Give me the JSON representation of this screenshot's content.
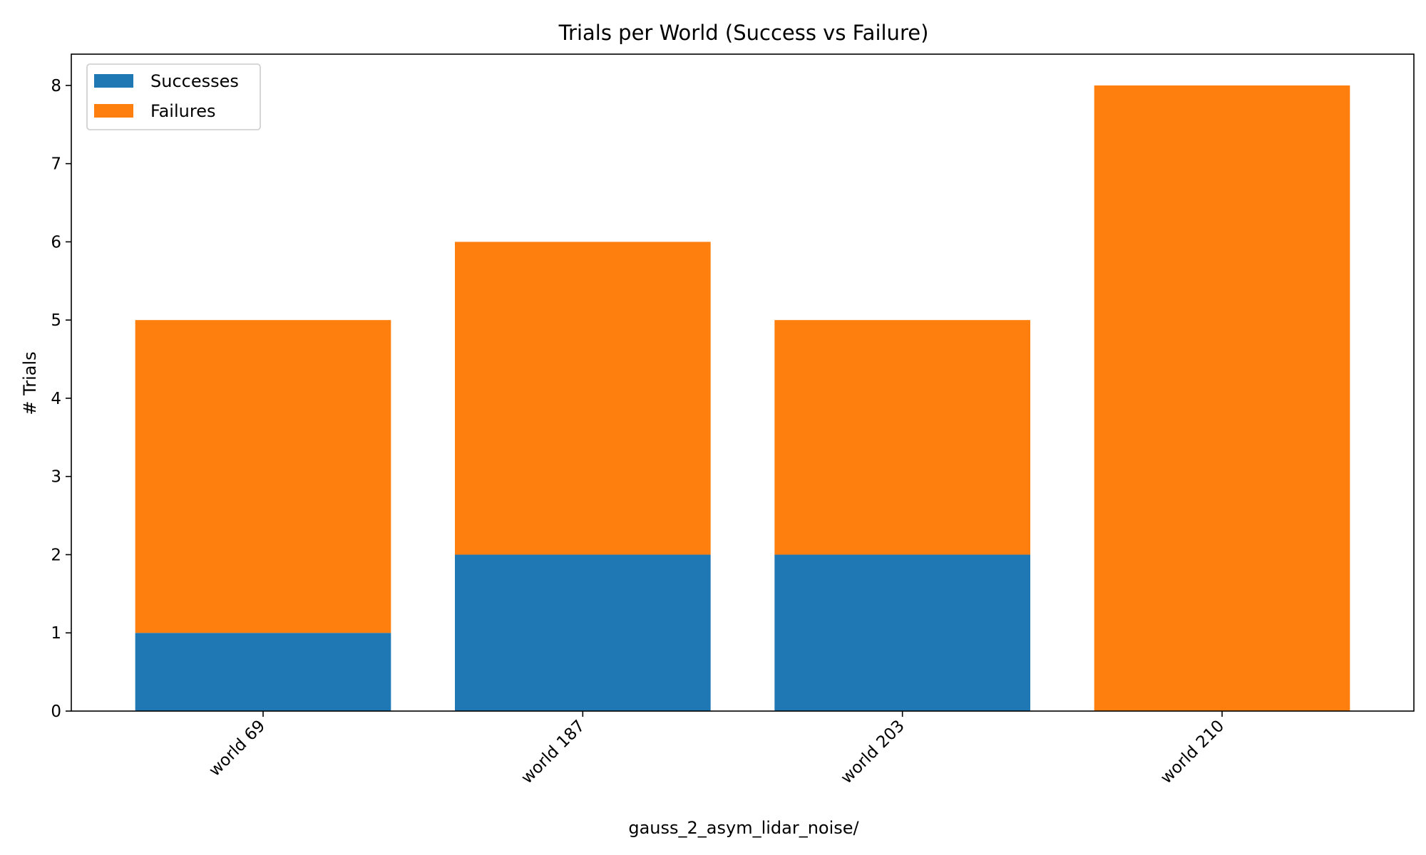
{
  "chart_data": {
    "type": "bar",
    "stacked": true,
    "title": "Trials per World (Success vs Failure)",
    "xlabel": "gauss_2_asym_lidar_noise/",
    "ylabel": "# Trials",
    "categories": [
      "world 69",
      "world 187",
      "world 203",
      "world 210"
    ],
    "series": [
      {
        "name": "Successes",
        "color": "#1f77b4",
        "values": [
          1,
          2,
          2,
          0
        ]
      },
      {
        "name": "Failures",
        "color": "#ff7f0e",
        "values": [
          4,
          4,
          3,
          8
        ]
      }
    ],
    "ylim": [
      0,
      8.4
    ],
    "yticks": [
      0,
      1,
      2,
      3,
      4,
      5,
      6,
      7,
      8
    ],
    "grid": false,
    "legend": "top-left"
  }
}
